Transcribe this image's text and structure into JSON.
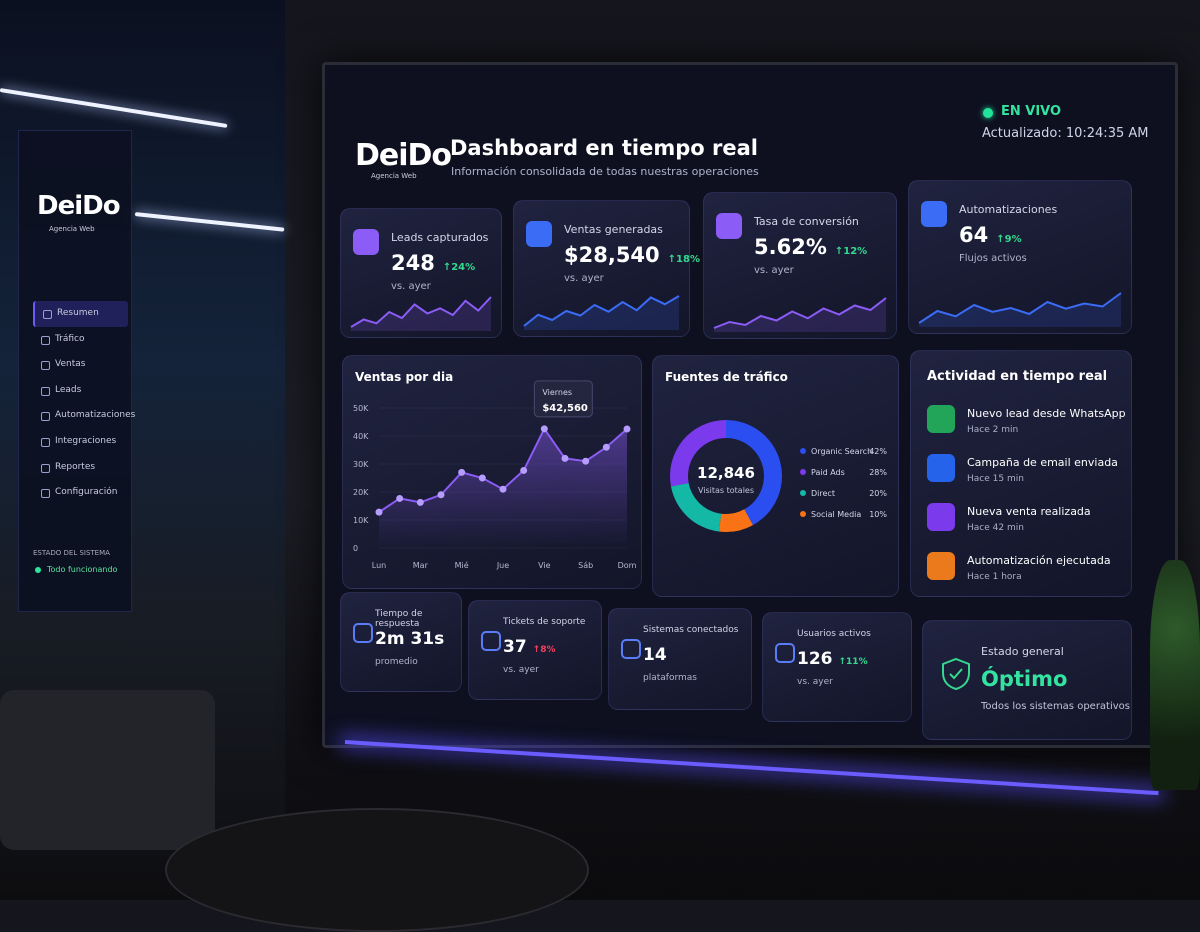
{
  "brand": {
    "logo": "DeiDo",
    "tagline": "Agencia Web"
  },
  "sidebar": {
    "nav": [
      "Resumen",
      "Tráfico",
      "Ventas",
      "Leads",
      "Automatizaciones",
      "Integraciones",
      "Reportes",
      "Configuración"
    ],
    "status_title": "ESTADO DEL SISTEMA",
    "status": "Todo funcionando"
  },
  "header": {
    "title": "Dashboard en tiempo real",
    "subtitle": "Información consolidada de todas nuestras operaciones",
    "live": "EN VIVO",
    "updated": "Actualizado: 10:24:35 AM"
  },
  "kpis": [
    {
      "label": "Leads capturados",
      "value": "248",
      "change": "↑24%",
      "note": "vs. ayer",
      "color": "#8b5cf6",
      "trend": [
        3,
        4,
        3.5,
        5,
        4.2,
        6,
        4.8,
        5.5,
        4.6,
        6.5,
        5.2,
        7
      ]
    },
    {
      "label": "Ventas generadas",
      "value": "$28,540",
      "change": "↑18%",
      "note": "vs. ayer",
      "color": "#3b6cf6",
      "trend": [
        3,
        4.5,
        3.8,
        5,
        4.4,
        5.8,
        4.9,
        6.2,
        5.1,
        6.8,
        5.9,
        7
      ]
    },
    {
      "label": "Tasa de conversión",
      "value": "5.62%",
      "change": "↑12%",
      "note": "vs. ayer",
      "color": "#8b5cf6",
      "trend": [
        3,
        3.8,
        3.4,
        4.6,
        4,
        5.2,
        4.3,
        5.6,
        4.8,
        6,
        5.4,
        7
      ]
    },
    {
      "label": "Automatizaciones",
      "value": "64",
      "change": "↑9%",
      "note": "Flujos activos",
      "color": "#3b6cf6",
      "trend": [
        3,
        4.6,
        3.9,
        5.4,
        4.5,
        5,
        4.2,
        5.8,
        4.9,
        5.6,
        5.2,
        7
      ]
    }
  ],
  "chart_data": [
    {
      "type": "line",
      "title": "Ventas por dia",
      "x": [
        0,
        0.5,
        1,
        1.5,
        2,
        2.5,
        3,
        3.5,
        4,
        4.5,
        5,
        5.5,
        6
      ],
      "values": [
        12800,
        17700,
        16300,
        19000,
        27000,
        25000,
        21000,
        27700,
        42560,
        32000,
        31000,
        36000,
        42500
      ],
      "value_labels": [
        null,
        null,
        null,
        null,
        null,
        null,
        null,
        null,
        "$42,560",
        null,
        null,
        null,
        null
      ],
      "tooltip_title": "Viernes",
      "color": "#8b5cf6",
      "xlim": [
        0,
        6
      ],
      "xticks": [
        {
          "value": 0,
          "label": "Lun"
        },
        {
          "value": 1,
          "label": "Mar"
        },
        {
          "value": 2,
          "label": "Mié"
        },
        {
          "value": 3,
          "label": "Jue"
        },
        {
          "value": 4,
          "label": "Vie"
        },
        {
          "value": 5,
          "label": "Sáb"
        },
        {
          "value": 6,
          "label": "Dom"
        }
      ],
      "ylim": [
        0,
        50000
      ],
      "yticks": [
        0,
        {
          "value": 10000,
          "label": "10K"
        },
        {
          "value": 20000,
          "label": "20K"
        },
        {
          "value": 30000,
          "label": "30K"
        },
        {
          "value": 40000,
          "label": "40K"
        },
        {
          "value": 50000,
          "label": "50K"
        }
      ],
      "grid": true
    },
    {
      "type": "pie",
      "title": "Fuentes de tráfico",
      "center_value": "12,846",
      "center_label": "Visitas totales",
      "categories": [
        "Organic Search",
        "Paid Ads",
        "Direct",
        "Social Media"
      ],
      "values": [
        42,
        28,
        20,
        10
      ],
      "value_labels": [
        "42%",
        "28%",
        "20%",
        "10%"
      ],
      "colors": [
        "#2b4ef0",
        "#7c3aed",
        "#14b8a6",
        "#f97316"
      ]
    }
  ],
  "activity": {
    "title": "Actividad en tiempo real",
    "items": [
      {
        "title": "Nuevo lead desde WhatsApp",
        "time": "Hace 2 min",
        "color": "#22a559"
      },
      {
        "title": "Campaña de email enviada",
        "time": "Hace 15 min",
        "color": "#2563eb"
      },
      {
        "title": "Nueva venta realizada",
        "time": "Hace 42 min",
        "color": "#7c3aed"
      },
      {
        "title": "Automatización ejecutada",
        "time": "Hace 1 hora",
        "color": "#ea7a1c"
      }
    ]
  },
  "stats": [
    {
      "label": "Tiempo de respuesta",
      "value": "2m 31s",
      "note": "promedio"
    },
    {
      "label": "Tickets de soporte",
      "value": "37",
      "change": "↑8%",
      "note": "vs. ayer"
    },
    {
      "label": "Sistemas conectados",
      "value": "14",
      "note": "plataformas"
    },
    {
      "label": "Usuarios activos",
      "value": "126",
      "change": "↑11%",
      "note": "vs. ayer"
    }
  ],
  "status": {
    "label": "Estado general",
    "value": "Óptimo",
    "note": "Todos los sistemas operativos"
  }
}
